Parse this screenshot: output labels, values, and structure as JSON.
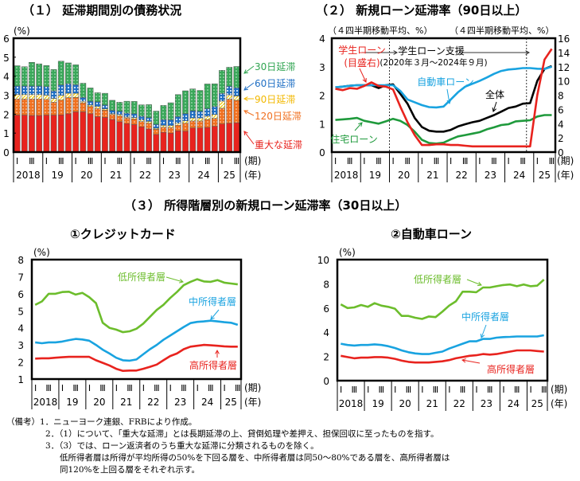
{
  "titles": {
    "chart1": "（１） 延滞期間別の債務状況",
    "chart2": "（２） 新規ローン延滞率（90日以上）",
    "section3": "（３） 所得階層別の新規ローン延滞率（30日以上）",
    "chart3": "①クレジットカード",
    "chart4": "②自動車ローン"
  },
  "axis_common": {
    "quarter_ticks": [
      "Ⅰ",
      "Ⅲ"
    ],
    "years": [
      "2018",
      "19",
      "20",
      "21",
      "22",
      "23",
      "24",
      "25"
    ],
    "period_label": "(期)",
    "year_label": "(年)",
    "unit_label": "(%)"
  },
  "notes": {
    "head": "（備考）",
    "items": [
      "1．ニューヨーク連銀、FRBにより作成。",
      "2．（1）について、「重大な延滞」とは長期延滞の上、貸倒処理や差押え、担保回収に至ったものを指す。",
      "3．（3）では、ローン返済者のうち重大な延滞に分類されるものを除く。",
      "低所得者層は所得が平均所得の50%を下回る層を、中所得者層は同50～80%である層を、高所得者層は",
      "同120%を上回る層をそれぞれ示す。"
    ]
  },
  "chart_data": [
    {
      "type": "bar",
      "stacked": true,
      "title": "（１） 延滞期間別の債務状況",
      "ylabel": "(%)",
      "ylim": [
        0,
        6
      ],
      "yticks": [
        0,
        1,
        2,
        3,
        4,
        5,
        6
      ],
      "x": [
        "2018Q1",
        "2018Q2",
        "2018Q3",
        "2018Q4",
        "2019Q1",
        "2019Q2",
        "2019Q3",
        "2019Q4",
        "2020Q1",
        "2020Q2",
        "2020Q3",
        "2020Q4",
        "2021Q1",
        "2021Q2",
        "2021Q3",
        "2021Q4",
        "2022Q1",
        "2022Q2",
        "2022Q3",
        "2022Q4",
        "2023Q1",
        "2023Q2",
        "2023Q3",
        "2023Q4",
        "2024Q1",
        "2024Q2",
        "2024Q3",
        "2024Q4",
        "2025Q1",
        "2025Q2",
        "2025Q3"
      ],
      "series": [
        {
          "name": "重大な延滞",
          "color": "#e8231e",
          "values": [
            1.95,
            1.95,
            1.93,
            1.93,
            1.95,
            1.95,
            1.96,
            2.02,
            2.12,
            2.12,
            2.02,
            1.87,
            1.83,
            1.72,
            1.6,
            1.5,
            1.45,
            1.33,
            1.22,
            0.93,
            1.04,
            1.0,
            1.12,
            1.1,
            1.27,
            1.27,
            1.3,
            1.36,
            1.48,
            1.52,
            1.55
          ]
        },
        {
          "name": "120日延滞",
          "color": "#f07020",
          "values": [
            0.85,
            0.85,
            0.87,
            0.87,
            0.83,
            0.68,
            0.78,
            0.85,
            0.76,
            0.48,
            0.38,
            0.43,
            0.38,
            0.26,
            0.3,
            0.3,
            0.3,
            0.28,
            0.3,
            0.27,
            0.27,
            0.3,
            0.3,
            0.42,
            0.37,
            0.37,
            0.42,
            0.42,
            0.83,
            1.27,
            1.18
          ]
        },
        {
          "name": "90日延滞",
          "color": "#ffd21e",
          "values": [
            0.23,
            0.23,
            0.23,
            0.23,
            0.22,
            0.2,
            0.25,
            0.23,
            0.22,
            0.08,
            0.08,
            0.1,
            0.07,
            0.05,
            0.08,
            0.05,
            0.07,
            0.08,
            0.1,
            0.06,
            0.1,
            0.1,
            0.1,
            0.13,
            0.16,
            0.16,
            0.17,
            0.2,
            0.38,
            0.23,
            0.23
          ]
        },
        {
          "name": "60日延滞",
          "color": "#1f6fc4",
          "values": [
            0.45,
            0.45,
            0.45,
            0.45,
            0.45,
            0.4,
            0.55,
            0.5,
            0.45,
            0.2,
            0.2,
            0.25,
            0.2,
            0.17,
            0.17,
            0.2,
            0.2,
            0.2,
            0.2,
            0.2,
            0.3,
            0.3,
            0.35,
            0.38,
            0.38,
            0.35,
            0.4,
            0.42,
            0.4,
            0.45,
            0.43
          ]
        },
        {
          "name": "30日延滞",
          "color": "#2fa450",
          "values": [
            1.07,
            1.02,
            1.25,
            1.17,
            1.11,
            1.12,
            1.25,
            1.1,
            1.05,
            0.75,
            0.7,
            0.48,
            0.62,
            0.53,
            0.48,
            0.63,
            0.65,
            0.6,
            0.68,
            0.7,
            0.75,
            0.9,
            1.16,
            1.2,
            1.15,
            1.1,
            1.3,
            1.2,
            1.22,
            1.0,
            1.12
          ]
        }
      ],
      "legend_placement": "right",
      "xlabel": "(期)(年)"
    },
    {
      "type": "line",
      "title": "（２） 新規ローン延滞率（90日以上）",
      "ylabel_left": "（４四半期移動平均、%）",
      "ylabel_right": "（４四半期移動平均、%）",
      "ylim_left": [
        0,
        4
      ],
      "ylim_right": [
        0,
        16
      ],
      "yticks_left": [
        0,
        1,
        2,
        3,
        4
      ],
      "yticks_right": [
        0,
        2,
        4,
        6,
        8,
        10,
        12,
        14,
        16
      ],
      "x": [
        "2018Q1",
        "2018Q2",
        "2018Q3",
        "2018Q4",
        "2019Q1",
        "2019Q2",
        "2019Q3",
        "2019Q4",
        "2020Q1",
        "2020Q2",
        "2020Q3",
        "2020Q4",
        "2021Q1",
        "2021Q2",
        "2021Q3",
        "2021Q4",
        "2022Q1",
        "2022Q2",
        "2022Q3",
        "2022Q4",
        "2023Q1",
        "2023Q2",
        "2023Q3",
        "2023Q4",
        "2024Q1",
        "2024Q2",
        "2024Q3",
        "2024Q4",
        "2025Q1",
        "2025Q2",
        "2025Q3"
      ],
      "series": [
        {
          "name": "全体",
          "color": "#000000",
          "axis": "left",
          "values": [
            2.27,
            2.3,
            2.33,
            2.35,
            2.35,
            2.35,
            2.25,
            2.35,
            2.38,
            2.05,
            1.7,
            1.2,
            0.88,
            0.75,
            0.72,
            0.72,
            0.78,
            0.9,
            0.98,
            1.05,
            1.1,
            1.2,
            1.3,
            1.42,
            1.55,
            1.6,
            1.7,
            1.72,
            2.5,
            2.92,
            3.02
          ]
        },
        {
          "name": "自動車ローン",
          "color": "#19a3e0",
          "axis": "left",
          "values": [
            2.28,
            2.3,
            2.33,
            2.35,
            2.35,
            2.35,
            2.35,
            2.35,
            2.35,
            2.15,
            1.85,
            1.75,
            1.65,
            1.58,
            1.57,
            1.6,
            1.85,
            2.1,
            2.3,
            2.4,
            2.5,
            2.62,
            2.75,
            2.85,
            2.9,
            2.92,
            2.95,
            2.95,
            2.93,
            2.92,
            3.0
          ]
        },
        {
          "name": "住宅ローン",
          "color": "#1f9a3c",
          "axis": "left",
          "values": [
            1.13,
            1.15,
            1.17,
            1.2,
            1.1,
            1.05,
            1.0,
            1.08,
            1.17,
            1.1,
            0.95,
            0.72,
            0.43,
            0.32,
            0.3,
            0.33,
            0.45,
            0.55,
            0.6,
            0.65,
            0.7,
            0.8,
            0.87,
            0.95,
            0.98,
            1.08,
            1.1,
            1.12,
            1.25,
            1.3,
            1.3
          ]
        },
        {
          "name": "学生ローン（目盛右）",
          "color": "#e8231e",
          "axis": "right",
          "values": [
            8.9,
            8.7,
            9.0,
            8.9,
            9.3,
            9.8,
            9.3,
            9.2,
            8.8,
            6.4,
            4.2,
            2.4,
            1.0,
            1.0,
            1.1,
            1.1,
            1.0,
            1.0,
            0.9,
            0.8,
            0.8,
            0.8,
            0.8,
            0.8,
            0.8,
            0.8,
            0.8,
            0.8,
            8.0,
            13.0,
            14.5
          ]
        }
      ],
      "annotations": [
        "学生ローン支援",
        "(2020年３月～2024年９月)",
        "学生ローン",
        "(目盛右)",
        "自動車ローン",
        "全体",
        "住宅ローン"
      ],
      "shaded_period": [
        "2020Q1",
        "2024Q3"
      ]
    },
    {
      "type": "line",
      "title": "①クレジットカード",
      "ylabel": "(%)",
      "ylim": [
        1,
        8
      ],
      "yticks": [
        1,
        2,
        3,
        4,
        5,
        6,
        7,
        8
      ],
      "x": [
        "2018Q1",
        "2018Q2",
        "2018Q3",
        "2018Q4",
        "2019Q1",
        "2019Q2",
        "2019Q3",
        "2019Q4",
        "2020Q1",
        "2020Q2",
        "2020Q3",
        "2020Q4",
        "2021Q1",
        "2021Q2",
        "2021Q3",
        "2021Q4",
        "2022Q1",
        "2022Q2",
        "2022Q3",
        "2022Q4",
        "2023Q1",
        "2023Q2",
        "2023Q3",
        "2023Q4",
        "2024Q1",
        "2024Q2",
        "2024Q3",
        "2024Q4",
        "2025Q1",
        "2025Q2",
        "2025Q3"
      ],
      "series": [
        {
          "name": "低所得者層",
          "color": "#6cbd2c",
          "values": [
            5.35,
            5.55,
            6.0,
            6.0,
            6.1,
            6.12,
            5.95,
            6.05,
            5.8,
            5.45,
            4.3,
            4.0,
            3.9,
            3.75,
            3.8,
            3.95,
            4.25,
            4.65,
            5.05,
            5.35,
            5.75,
            6.1,
            6.5,
            6.7,
            6.85,
            6.72,
            6.7,
            6.8,
            6.65,
            6.6,
            6.55
          ]
        },
        {
          "name": "中所得者層",
          "color": "#19a3e0",
          "values": [
            3.15,
            3.1,
            3.15,
            3.15,
            3.2,
            3.28,
            3.35,
            3.32,
            3.25,
            3.0,
            2.72,
            2.5,
            2.25,
            2.1,
            2.08,
            2.15,
            2.45,
            2.75,
            3.0,
            3.3,
            3.55,
            3.8,
            4.05,
            4.28,
            4.35,
            4.38,
            4.42,
            4.38,
            4.33,
            4.3,
            4.18
          ]
        },
        {
          "name": "高所得者層",
          "color": "#e8231e",
          "values": [
            2.2,
            2.22,
            2.22,
            2.25,
            2.28,
            2.3,
            2.3,
            2.3,
            2.3,
            2.1,
            1.95,
            1.8,
            1.6,
            1.48,
            1.5,
            1.5,
            1.6,
            1.72,
            1.85,
            2.1,
            2.35,
            2.5,
            2.75,
            2.9,
            2.95,
            3.0,
            2.98,
            2.95,
            2.92,
            2.9,
            2.9
          ]
        }
      ]
    },
    {
      "type": "line",
      "title": "②自動車ローン",
      "ylabel": "(%)",
      "ylim": [
        0,
        10
      ],
      "yticks": [
        0,
        2,
        4,
        6,
        8,
        10
      ],
      "x": [
        "2018Q1",
        "2018Q2",
        "2018Q3",
        "2018Q4",
        "2019Q1",
        "2019Q2",
        "2019Q3",
        "2019Q4",
        "2020Q1",
        "2020Q2",
        "2020Q3",
        "2020Q4",
        "2021Q1",
        "2021Q2",
        "2021Q3",
        "2021Q4",
        "2022Q1",
        "2022Q2",
        "2022Q3",
        "2022Q4",
        "2023Q1",
        "2023Q2",
        "2023Q3",
        "2023Q4",
        "2024Q1",
        "2024Q2",
        "2024Q3",
        "2024Q4",
        "2025Q1",
        "2025Q2",
        "2025Q3"
      ],
      "series": [
        {
          "name": "低所得者層",
          "color": "#6cbd2c",
          "values": [
            6.3,
            6.0,
            6.05,
            6.25,
            6.1,
            6.4,
            6.2,
            6.1,
            5.95,
            5.35,
            5.35,
            5.2,
            5.1,
            5.3,
            5.25,
            5.7,
            6.2,
            6.55,
            7.35,
            7.35,
            7.3,
            7.7,
            7.7,
            7.8,
            7.9,
            7.95,
            7.8,
            7.95,
            7.8,
            7.85,
            8.35
          ]
        },
        {
          "name": "中所得者層",
          "color": "#19a3e0",
          "values": [
            3.05,
            2.95,
            2.9,
            2.95,
            2.95,
            3.0,
            2.95,
            2.85,
            2.7,
            2.5,
            2.35,
            2.25,
            2.2,
            2.2,
            2.3,
            2.4,
            2.65,
            2.85,
            3.05,
            3.25,
            3.25,
            3.45,
            3.45,
            3.55,
            3.6,
            3.62,
            3.65,
            3.65,
            3.65,
            3.65,
            3.75
          ]
        },
        {
          "name": "高所得者層",
          "color": "#e8231e",
          "values": [
            2.05,
            1.95,
            1.85,
            1.9,
            1.9,
            1.95,
            1.95,
            1.9,
            1.8,
            1.65,
            1.55,
            1.5,
            1.5,
            1.5,
            1.55,
            1.6,
            1.7,
            1.85,
            1.95,
            2.05,
            2.1,
            2.2,
            2.15,
            2.2,
            2.3,
            2.4,
            2.5,
            2.5,
            2.5,
            2.45,
            2.4
          ]
        }
      ]
    }
  ]
}
